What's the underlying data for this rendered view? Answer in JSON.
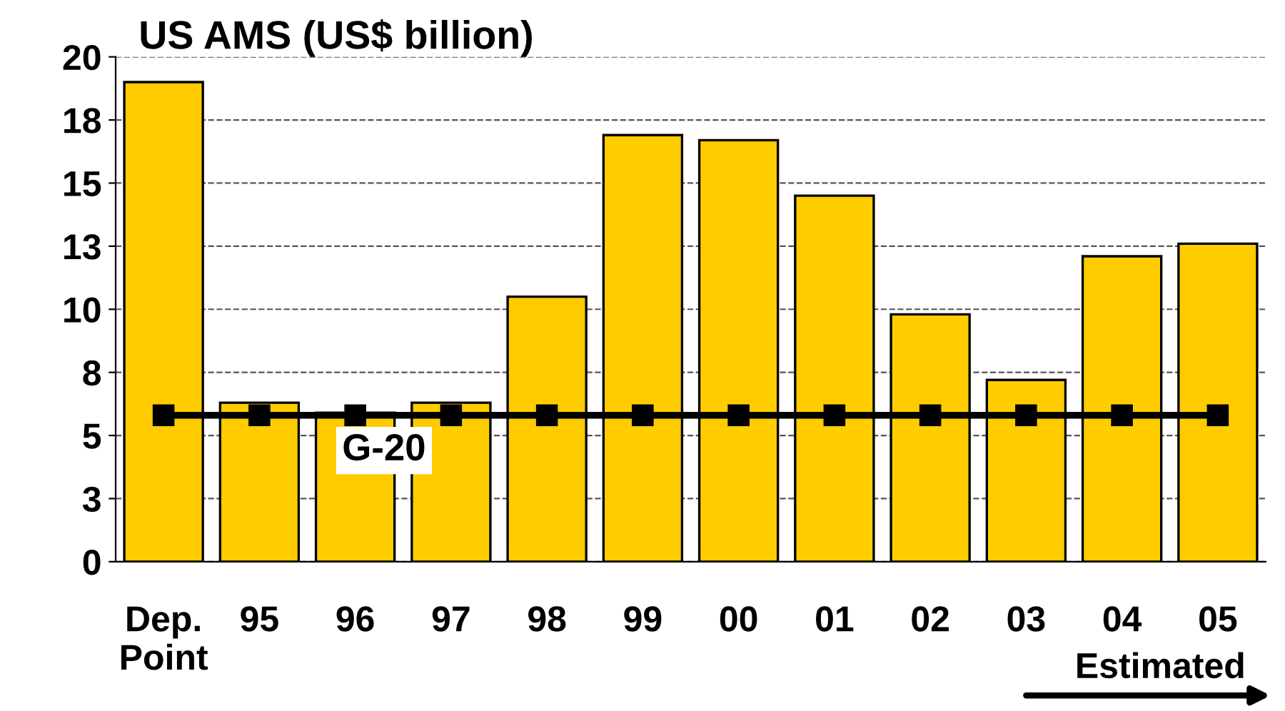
{
  "chart_data": {
    "type": "bar",
    "title": "US AMS (US$ billion)",
    "categories": [
      "Dep.\nPoint",
      "95",
      "96",
      "97",
      "98",
      "99",
      "00",
      "01",
      "02",
      "03",
      "04",
      "05"
    ],
    "series": [
      {
        "color": "#ffcc00",
        "values": [
          19.0,
          6.3,
          5.9,
          6.3,
          10.5,
          16.9,
          16.7,
          14.5,
          9.8,
          7.2,
          12.1,
          12.6
        ]
      },
      {
        "type": "line",
        "name": "G-20",
        "color": "#000000",
        "marker": "square",
        "values": [
          5.8,
          5.8,
          5.8,
          5.8,
          5.8,
          5.8,
          5.8,
          5.8,
          5.8,
          5.8,
          5.8,
          5.8
        ]
      }
    ],
    "ylim": [
      0,
      20
    ],
    "yticks": [
      0,
      {
        "value": 2.5,
        "label": "3"
      },
      5,
      {
        "value": 7.5,
        "label": "8"
      },
      10,
      {
        "value": 12.5,
        "label": "13"
      },
      15,
      {
        "value": 17.5,
        "label": "18"
      },
      20
    ],
    "grid": "y",
    "annotations": [
      "Estimated"
    ]
  }
}
